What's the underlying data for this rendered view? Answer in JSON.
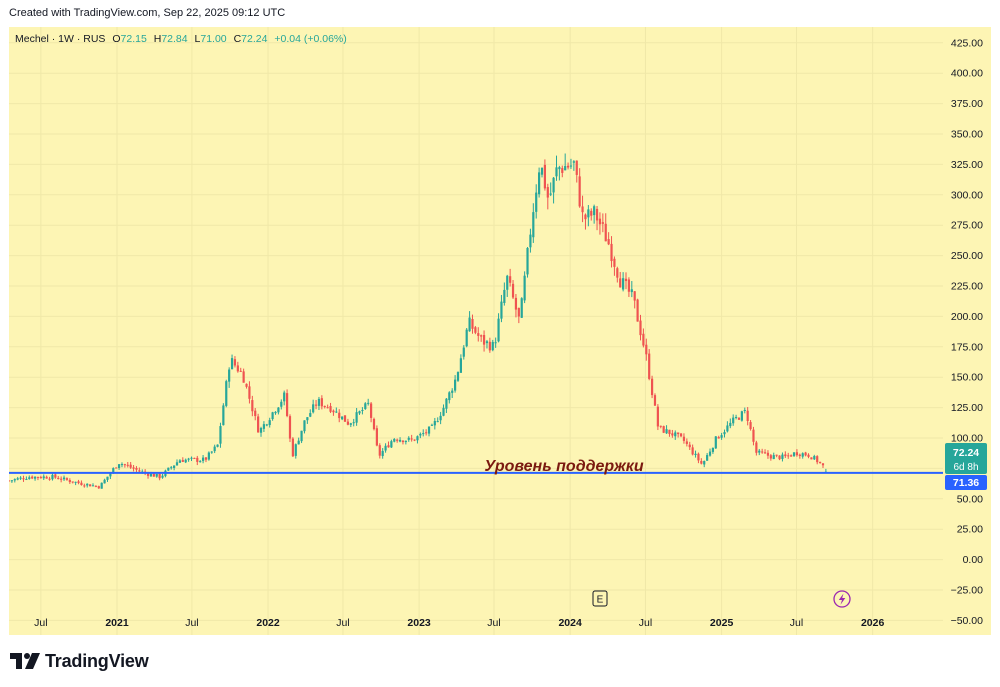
{
  "header": {
    "created_note": "Created with TradingView.com, Sep 22, 2025 09:12 UTC"
  },
  "legend": {
    "symbol": "Mechel · 1W · RUS",
    "o_label": "O",
    "o_value": "72.15",
    "h_label": "H",
    "h_value": "72.84",
    "l_label": "L",
    "l_value": "71.00",
    "c_label": "C",
    "c_value": "72.24",
    "change": "+0.04 (+0.06%)"
  },
  "colors": {
    "background": "#fdf5b4",
    "grid": "#f0e8a8",
    "up": "#26a69a",
    "down": "#ef5350",
    "support_line": "#2962ff",
    "annotation_text": "#7b1a10",
    "price_tag": "#26a69a",
    "support_tag": "#2962ff",
    "events_purple": "#9c27b0"
  },
  "annotation": {
    "text": "Уровень поддержки"
  },
  "price_scale": {
    "current_price": "72.24",
    "countdown": "6d 8h",
    "support_price": "71.36"
  },
  "markers": {
    "earnings": "E",
    "dividend_icon": "lightning-icon"
  },
  "branding": {
    "wordmark": "TradingView",
    "logo_icon": "tradingview-logo-icon"
  },
  "chart_data": {
    "type": "candlestick",
    "title": "Mechel · 1W · RUS",
    "xlabel": "",
    "ylabel": "",
    "ylim": [
      -62,
      438
    ],
    "y_ticks": [
      425,
      400,
      375,
      350,
      325,
      300,
      275,
      250,
      225,
      200,
      175,
      150,
      125,
      100,
      75,
      50,
      25,
      0,
      -25,
      -50
    ],
    "y_tick_labels": [
      "425.00",
      "400.00",
      "375.00",
      "350.00",
      "325.00",
      "300.00",
      "275.00",
      "250.00",
      "225.00",
      "200.00",
      "175.00",
      "150.00",
      "125.00",
      "100.00",
      "75.00",
      "50.00",
      "25.00",
      "0.00",
      "−25.00",
      "−50.00"
    ],
    "x_tick_labels": [
      {
        "date": "2020-07-01",
        "label": "Jul"
      },
      {
        "date": "2021-01-01",
        "label": "2021"
      },
      {
        "date": "2021-07-01",
        "label": "Jul"
      },
      {
        "date": "2022-01-01",
        "label": "2022"
      },
      {
        "date": "2022-07-01",
        "label": "Jul"
      },
      {
        "date": "2023-01-01",
        "label": "2023"
      },
      {
        "date": "2023-07-01",
        "label": "Jul"
      },
      {
        "date": "2024-01-01",
        "label": "2024"
      },
      {
        "date": "2024-07-01",
        "label": "Jul"
      },
      {
        "date": "2025-01-01",
        "label": "2025"
      },
      {
        "date": "2025-07-01",
        "label": "Jul"
      },
      {
        "date": "2026-01-01",
        "label": "2026"
      }
    ],
    "x_range": [
      "2020-04-15",
      "2026-06-20"
    ],
    "grid": true,
    "support_level": 71.36,
    "last_close": 72.24,
    "price_path": [
      {
        "date": "2020-04-15",
        "close": 65
      },
      {
        "date": "2020-06-01",
        "close": 68
      },
      {
        "date": "2020-08-01",
        "close": 68
      },
      {
        "date": "2020-10-01",
        "close": 63
      },
      {
        "date": "2020-11-20",
        "close": 60
      },
      {
        "date": "2021-01-05",
        "close": 80
      },
      {
        "date": "2021-03-01",
        "close": 72
      },
      {
        "date": "2021-04-15",
        "close": 68
      },
      {
        "date": "2021-06-01",
        "close": 82
      },
      {
        "date": "2021-08-01",
        "close": 82
      },
      {
        "date": "2021-09-01",
        "close": 94
      },
      {
        "date": "2021-10-01",
        "close": 165
      },
      {
        "date": "2021-11-01",
        "close": 152
      },
      {
        "date": "2021-12-10",
        "close": 105
      },
      {
        "date": "2022-01-10",
        "close": 120
      },
      {
        "date": "2022-02-10",
        "close": 135
      },
      {
        "date": "2022-02-28",
        "close": 85
      },
      {
        "date": "2022-04-01",
        "close": 115
      },
      {
        "date": "2022-05-01",
        "close": 130
      },
      {
        "date": "2022-06-01",
        "close": 125
      },
      {
        "date": "2022-07-15",
        "close": 112
      },
      {
        "date": "2022-09-01",
        "close": 128
      },
      {
        "date": "2022-09-25",
        "close": 85
      },
      {
        "date": "2022-11-01",
        "close": 100
      },
      {
        "date": "2022-12-15",
        "close": 98
      },
      {
        "date": "2023-02-01",
        "close": 108
      },
      {
        "date": "2023-03-01",
        "close": 125
      },
      {
        "date": "2023-04-01",
        "close": 150
      },
      {
        "date": "2023-05-01",
        "close": 195
      },
      {
        "date": "2023-06-01",
        "close": 180
      },
      {
        "date": "2023-07-01",
        "close": 175
      },
      {
        "date": "2023-08-01",
        "close": 232
      },
      {
        "date": "2023-09-01",
        "close": 195
      },
      {
        "date": "2023-10-01",
        "close": 282
      },
      {
        "date": "2023-10-20",
        "close": 328
      },
      {
        "date": "2023-11-10",
        "close": 295
      },
      {
        "date": "2023-12-01",
        "close": 322
      },
      {
        "date": "2024-01-10",
        "close": 325
      },
      {
        "date": "2024-02-01",
        "close": 280
      },
      {
        "date": "2024-03-01",
        "close": 285
      },
      {
        "date": "2024-04-01",
        "close": 262
      },
      {
        "date": "2024-05-01",
        "close": 230
      },
      {
        "date": "2024-06-01",
        "close": 215
      },
      {
        "date": "2024-07-01",
        "close": 170
      },
      {
        "date": "2024-08-01",
        "close": 108
      },
      {
        "date": "2024-09-01",
        "close": 104
      },
      {
        "date": "2024-10-01",
        "close": 98
      },
      {
        "date": "2024-11-15",
        "close": 78
      },
      {
        "date": "2024-12-20",
        "close": 100
      },
      {
        "date": "2025-02-01",
        "close": 115
      },
      {
        "date": "2025-03-01",
        "close": 122
      },
      {
        "date": "2025-03-25",
        "close": 88
      },
      {
        "date": "2025-05-01",
        "close": 85
      },
      {
        "date": "2025-06-01",
        "close": 84
      },
      {
        "date": "2025-07-01",
        "close": 88
      },
      {
        "date": "2025-08-01",
        "close": 86
      },
      {
        "date": "2025-08-25",
        "close": 80
      },
      {
        "date": "2025-09-15",
        "close": 72.24
      }
    ]
  }
}
